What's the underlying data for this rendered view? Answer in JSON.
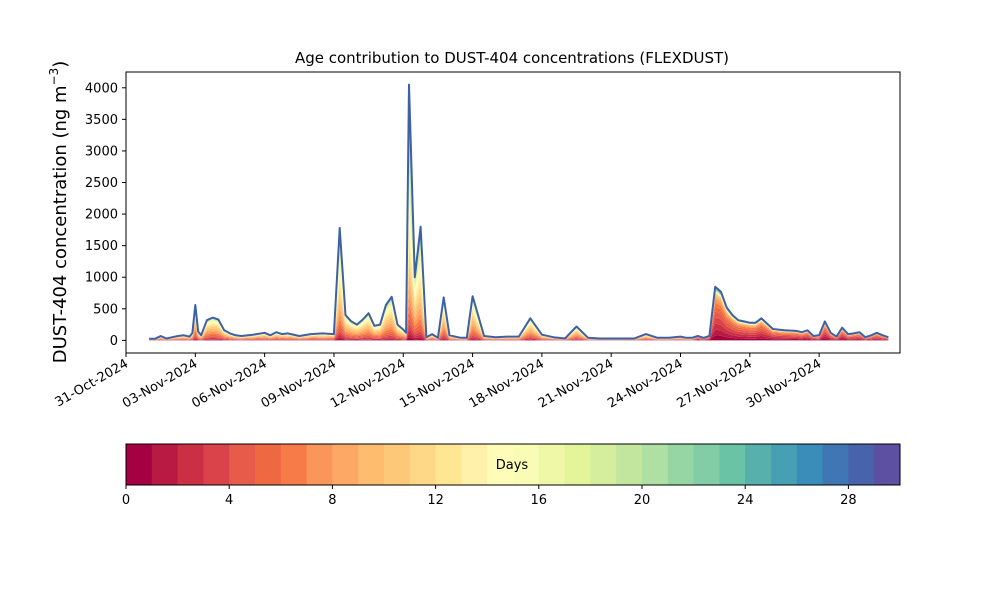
{
  "chart_data": {
    "type": "area",
    "title": "Age contribution to DUST-404 concentrations (FLEXDUST)",
    "ylabel": "DUST-404 concentration (ng m",
    "ylabel_sup": "−3",
    "ylabel_close": ")",
    "xlabel": "",
    "ylim": [
      -200,
      4250
    ],
    "y_ticks": [
      0,
      500,
      1000,
      1500,
      2000,
      2500,
      3000,
      3500,
      4000
    ],
    "xlim": [
      "2024-10-31T00:00",
      "2024-12-03T12:00"
    ],
    "x_ticks": [
      "31-Oct-2024",
      "03-Nov-2024",
      "06-Nov-2024",
      "09-Nov-2024",
      "12-Nov-2024",
      "15-Nov-2024",
      "18-Nov-2024",
      "21-Nov-2024",
      "24-Nov-2024",
      "27-Nov-2024",
      "30-Nov-2024"
    ],
    "x_tick_dates": [
      "2024-10-31",
      "2024-11-03",
      "2024-11-06",
      "2024-11-09",
      "2024-11-12",
      "2024-11-15",
      "2024-11-18",
      "2024-11-21",
      "2024-11-24",
      "2024-11-27",
      "2024-11-30"
    ],
    "stack_order": "youngest age band at bottom, oldest at top",
    "total_series": {
      "name": "",
      "x": [
        "2024-11-01T00:00",
        "2024-11-01T06:00",
        "2024-11-01T12:00",
        "2024-11-01T18:00",
        "2024-11-02T00:00",
        "2024-11-02T06:00",
        "2024-11-02T12:00",
        "2024-11-02T18:00",
        "2024-11-02T21:00",
        "2024-11-03T00:00",
        "2024-11-03T03:00",
        "2024-11-03T06:00",
        "2024-11-03T12:00",
        "2024-11-03T18:00",
        "2024-11-04T00:00",
        "2024-11-04T06:00",
        "2024-11-04T12:00",
        "2024-11-04T18:00",
        "2024-11-05T00:00",
        "2024-11-05T12:00",
        "2024-11-06T00:00",
        "2024-11-06T06:00",
        "2024-11-06T12:00",
        "2024-11-06T18:00",
        "2024-11-07T00:00",
        "2024-11-07T12:00",
        "2024-11-08T00:00",
        "2024-11-08T12:00",
        "2024-11-09T00:00",
        "2024-11-09T06:00",
        "2024-11-09T12:00",
        "2024-11-09T18:00",
        "2024-11-10T00:00",
        "2024-11-10T06:00",
        "2024-11-10T12:00",
        "2024-11-10T18:00",
        "2024-11-11T00:00",
        "2024-11-11T06:00",
        "2024-11-11T12:00",
        "2024-11-11T18:00",
        "2024-11-12T00:00",
        "2024-11-12T03:00",
        "2024-11-12T06:00",
        "2024-11-12T12:00",
        "2024-11-12T18:00",
        "2024-11-13T00:00",
        "2024-11-13T06:00",
        "2024-11-13T12:00",
        "2024-11-13T18:00",
        "2024-11-14T00:00",
        "2024-11-14T06:00",
        "2024-11-14T12:00",
        "2024-11-14T18:00",
        "2024-11-15T00:00",
        "2024-11-15T12:00",
        "2024-11-16T00:00",
        "2024-11-16T12:00",
        "2024-11-17T00:00",
        "2024-11-17T12:00",
        "2024-11-18T00:00",
        "2024-11-18T12:00",
        "2024-11-19T00:00",
        "2024-11-19T12:00",
        "2024-11-20T00:00",
        "2024-11-20T12:00",
        "2024-11-21T00:00",
        "2024-11-21T12:00",
        "2024-11-22T00:00",
        "2024-11-22T12:00",
        "2024-11-23T00:00",
        "2024-11-23T12:00",
        "2024-11-24T00:00",
        "2024-11-24T06:00",
        "2024-11-24T12:00",
        "2024-11-24T18:00",
        "2024-11-25T00:00",
        "2024-11-25T06:00",
        "2024-11-25T12:00",
        "2024-11-25T18:00",
        "2024-11-26T00:00",
        "2024-11-26T06:00",
        "2024-11-26T12:00",
        "2024-11-26T18:00",
        "2024-11-27T00:00",
        "2024-11-27T06:00",
        "2024-11-27T12:00",
        "2024-11-28T00:00",
        "2024-11-28T12:00",
        "2024-11-29T00:00",
        "2024-11-29T06:00",
        "2024-11-29T12:00",
        "2024-11-29T18:00",
        "2024-11-30T00:00",
        "2024-11-30T06:00",
        "2024-11-30T12:00",
        "2024-11-30T18:00",
        "2024-12-01T00:00",
        "2024-12-01T06:00",
        "2024-12-01T12:00",
        "2024-12-01T18:00",
        "2024-12-02T00:00",
        "2024-12-02T06:00",
        "2024-12-02T12:00",
        "2024-12-02T18:00",
        "2024-12-03T00:00"
      ],
      "values": [
        25,
        25,
        70,
        30,
        50,
        70,
        80,
        60,
        120,
        560,
        140,
        80,
        320,
        360,
        330,
        160,
        110,
        80,
        70,
        90,
        120,
        80,
        130,
        100,
        110,
        70,
        100,
        110,
        100,
        1780,
        400,
        300,
        250,
        330,
        430,
        230,
        250,
        560,
        690,
        250,
        170,
        120,
        4050,
        1000,
        1800,
        50,
        100,
        40,
        680,
        80,
        60,
        40,
        40,
        700,
        70,
        50,
        60,
        60,
        350,
        90,
        50,
        30,
        220,
        40,
        30,
        30,
        30,
        30,
        100,
        40,
        40,
        60,
        40,
        40,
        70,
        40,
        70,
        850,
        770,
        520,
        400,
        320,
        300,
        280,
        280,
        350,
        180,
        160,
        150,
        130,
        160,
        70,
        80,
        300,
        120,
        60,
        200,
        100,
        110,
        130,
        50,
        80,
        120,
        80,
        50
      ]
    },
    "colorbar": {
      "label": "Days",
      "min": 0,
      "max": 30,
      "ticks": [
        0,
        4,
        8,
        12,
        16,
        20,
        24,
        28
      ],
      "colormap": "Spectral",
      "colors": [
        "#a50142",
        "#b81a44",
        "#cb2f44",
        "#db434a",
        "#e65b4a",
        "#ee6842",
        "#f67b49",
        "#fa9659",
        "#fda865",
        "#fdbc6e",
        "#fdc878",
        "#fed887",
        "#fee692",
        "#fff1a9",
        "#fffcba",
        "#f9fcb4",
        "#eff8a6",
        "#e4f498",
        "#d4ee9d",
        "#c3e69f",
        "#ade0a2",
        "#96d5a4",
        "#82cda5",
        "#6bc3a5",
        "#57b0ab",
        "#469fb3",
        "#3a8db8",
        "#3e77b4",
        "#4862ab",
        "#5d4fa2"
      ]
    }
  }
}
